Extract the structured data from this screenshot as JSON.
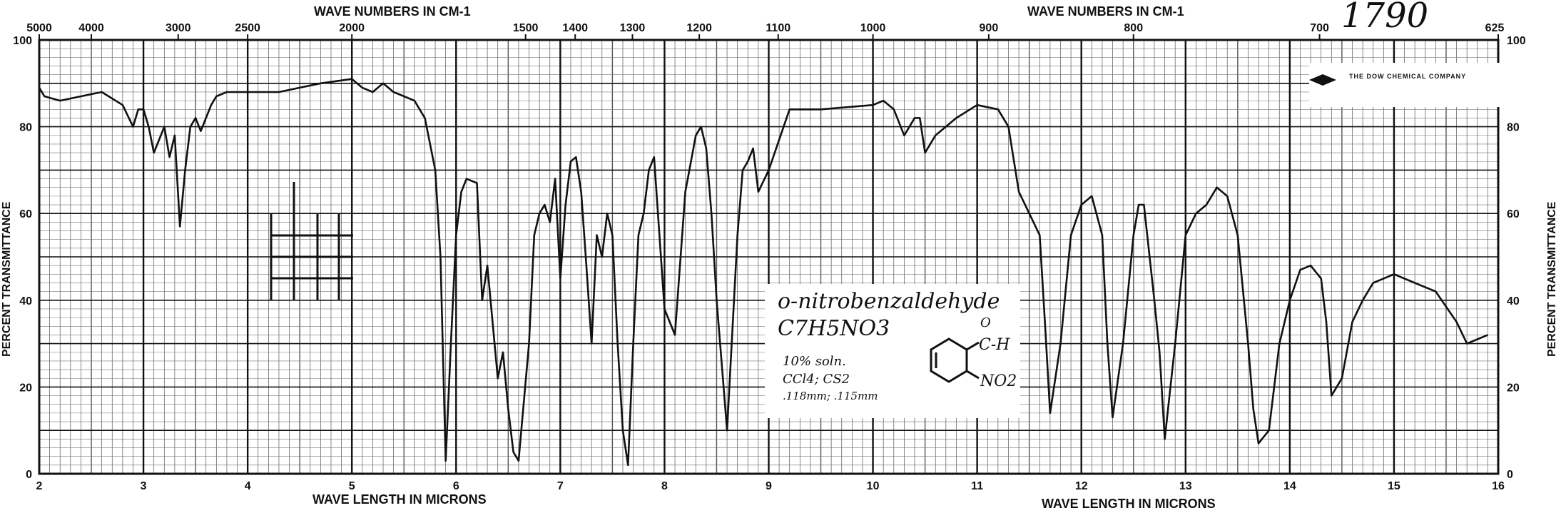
{
  "chart_data": {
    "type": "line",
    "title_top_left": "WAVE NUMBERS IN CM-1",
    "title_top_right": "WAVE NUMBERS IN CM-1",
    "xlabel_left": "WAVE LENGTH IN MICRONS",
    "xlabel_right": "WAVE LENGTH IN MICRONS",
    "ylabel": "PERCENT TRANSMITTANCE",
    "xlim": [
      2,
      16
    ],
    "ylim": [
      0,
      100
    ],
    "x_ticks": [
      "2",
      "3",
      "4",
      "5",
      "6",
      "7",
      "8",
      "9",
      "10",
      "11",
      "12",
      "13",
      "14",
      "15",
      "16"
    ],
    "y_ticks_left": [
      "0",
      "20",
      "40",
      "60",
      "80",
      "100"
    ],
    "y_ticks_right": [
      "0",
      "20",
      "40",
      "60",
      "80",
      "100"
    ],
    "wavenumber_ticks": [
      "5000",
      "4000",
      "3000",
      "2500",
      "2000",
      "1500",
      "1400",
      "1300",
      "1200",
      "1100",
      "1000",
      "900",
      "800",
      "700",
      "625"
    ],
    "grid": true,
    "series": [
      {
        "x": [
          2.0,
          2.05,
          2.2,
          2.4,
          2.6,
          2.8,
          2.9,
          2.95,
          3.0,
          3.05,
          3.1,
          3.2,
          3.25,
          3.3,
          3.35,
          3.4,
          3.45,
          3.5,
          3.55,
          3.6,
          3.65,
          3.7,
          3.8,
          4.0,
          4.3,
          4.5,
          4.7,
          5.0,
          5.1,
          5.2,
          5.3,
          5.4,
          5.5,
          5.6,
          5.7,
          5.8,
          5.85,
          5.9,
          5.95,
          6.0,
          6.05,
          6.1,
          6.2,
          6.25,
          6.3,
          6.35,
          6.4,
          6.45,
          6.5,
          6.55,
          6.6,
          6.7,
          6.75,
          6.8,
          6.85,
          6.9,
          6.95,
          7.0,
          7.05,
          7.1,
          7.15,
          7.2,
          7.25,
          7.3,
          7.35,
          7.4,
          7.45,
          7.5,
          7.55,
          7.6,
          7.65,
          7.7,
          7.75,
          7.8,
          7.85,
          7.9,
          8.0,
          8.1,
          8.2,
          8.3,
          8.35,
          8.4,
          8.45,
          8.5,
          8.6,
          8.7,
          8.75,
          8.8,
          8.85,
          8.9,
          9.0,
          9.2,
          9.5,
          10.0,
          10.1,
          10.2,
          10.3,
          10.4,
          10.45,
          10.5,
          10.6,
          10.8,
          11.0,
          11.2,
          11.3,
          11.4,
          11.5,
          11.6,
          11.65,
          11.7,
          11.8,
          11.9,
          12.0,
          12.1,
          12.2,
          12.25,
          12.3,
          12.4,
          12.5,
          12.55,
          12.6,
          12.7,
          12.75,
          12.8,
          12.9,
          13.0,
          13.1,
          13.2,
          13.3,
          13.4,
          13.5,
          13.6,
          13.65,
          13.7,
          13.8,
          13.9,
          14.0,
          14.1,
          14.2,
          14.3,
          14.35,
          14.4,
          14.5,
          14.6,
          14.7,
          14.8,
          14.9,
          15.0,
          15.2,
          15.4,
          15.6,
          15.7,
          15.8,
          15.9
        ],
        "y": [
          89,
          87,
          86,
          87,
          88,
          85,
          80,
          84,
          84,
          80,
          74,
          80,
          73,
          78,
          57,
          70,
          80,
          82,
          79,
          82,
          85,
          87,
          88,
          88,
          88,
          89,
          90,
          91,
          89,
          88,
          90,
          88,
          87,
          86,
          82,
          70,
          50,
          3,
          30,
          55,
          65,
          68,
          67,
          40,
          48,
          35,
          22,
          28,
          15,
          5,
          3,
          30,
          55,
          60,
          62,
          58,
          68,
          45,
          62,
          72,
          73,
          65,
          48,
          30,
          55,
          50,
          60,
          55,
          30,
          10,
          2,
          30,
          55,
          60,
          70,
          73,
          38,
          32,
          65,
          78,
          80,
          75,
          60,
          40,
          10,
          55,
          70,
          72,
          75,
          65,
          70,
          84,
          84,
          85,
          86,
          84,
          78,
          82,
          82,
          74,
          78,
          82,
          85,
          84,
          80,
          65,
          60,
          55,
          35,
          14,
          30,
          55,
          62,
          64,
          55,
          30,
          13,
          30,
          55,
          62,
          62,
          40,
          28,
          8,
          30,
          55,
          60,
          62,
          66,
          64,
          55,
          30,
          15,
          7,
          10,
          30,
          40,
          47,
          48,
          45,
          35,
          18,
          22,
          35,
          40,
          44,
          45,
          46,
          44,
          42,
          35,
          30,
          31,
          32
        ]
      }
    ],
    "annotations": {
      "compound": "o-nitrobenzaldehyde",
      "formula": "C7H5NO3",
      "conc_1": "10% soln.",
      "conc_2": "CCl4; CS2",
      "conc_3": ".118mm; .115mm",
      "ald": "C-H",
      "nitro": "NO2",
      "oxygen": "O",
      "ref_number": "1790"
    },
    "logo_text": "THE DOW CHEMICAL COMPANY",
    "colors": {
      "line": "#111111",
      "grid": "#1a1a1a",
      "background": "#ffffff"
    }
  }
}
